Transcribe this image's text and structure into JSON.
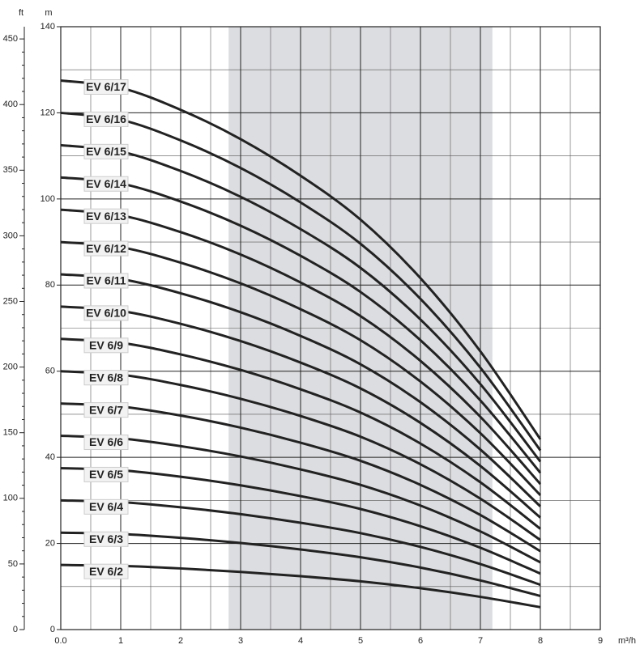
{
  "chart_data": {
    "type": "line",
    "y_unit_label": "m",
    "y2_unit_label": "ft",
    "x_unit_label": "m³/h",
    "xlim": [
      0,
      9
    ],
    "xticks": [
      {
        "value": 0,
        "label": "0.0"
      },
      1,
      2,
      3,
      4,
      5,
      6,
      7,
      8,
      9
    ],
    "ylim": [
      0,
      140
    ],
    "yticks": [
      0,
      20,
      40,
      60,
      80,
      100,
      120,
      140
    ],
    "y2lim": [
      0,
      459.32
    ],
    "y2ticks": [
      0,
      50,
      100,
      150,
      200,
      250,
      300,
      350,
      400,
      450
    ],
    "highlight_range": [
      2.8,
      7.2
    ],
    "highlight_color": "#dcdde0",
    "grid": true,
    "x": [
      0,
      1,
      2,
      3,
      4,
      5,
      6,
      7,
      8
    ],
    "series": [
      {
        "name": "EV 6/17",
        "color": "#222",
        "values": [
          127.5,
          125.8,
          120.7,
          113.9,
          105.4,
          95.2,
          81.6,
          64.6,
          44.2
        ]
      },
      {
        "name": "EV 6/16",
        "color": "#222",
        "values": [
          120,
          118.4,
          113.6,
          107.2,
          99.2,
          89.6,
          76.8,
          60.8,
          41.6
        ]
      },
      {
        "name": "EV 6/15",
        "color": "#222",
        "values": [
          112.5,
          111,
          106.5,
          100.5,
          93,
          84,
          72,
          57,
          39
        ]
      },
      {
        "name": "EV 6/14",
        "color": "#222",
        "values": [
          105,
          103.6,
          99.4,
          93.8,
          86.8,
          78.4,
          67.2,
          53.2,
          36.4
        ]
      },
      {
        "name": "EV 6/13",
        "color": "#222",
        "values": [
          97.5,
          96.2,
          92.3,
          87.1,
          80.6,
          72.8,
          62.4,
          49.4,
          33.8
        ]
      },
      {
        "name": "EV 6/12",
        "color": "#222",
        "values": [
          90,
          88.8,
          85.2,
          80.4,
          74.4,
          67.2,
          57.6,
          45.6,
          31.2
        ]
      },
      {
        "name": "EV 6/11",
        "color": "#222",
        "values": [
          82.5,
          81.4,
          78.1,
          73.7,
          68.2,
          61.6,
          52.8,
          41.8,
          28.6
        ]
      },
      {
        "name": "EV 6/10",
        "color": "#222",
        "values": [
          75,
          74,
          71,
          67,
          62,
          56,
          48,
          38,
          26
        ]
      },
      {
        "name": "EV 6/9",
        "color": "#222",
        "values": [
          67.5,
          66.6,
          63.9,
          60.3,
          55.8,
          50.4,
          43.2,
          34.2,
          23.4
        ]
      },
      {
        "name": "EV 6/8",
        "color": "#222",
        "values": [
          60,
          59.2,
          56.8,
          53.6,
          49.6,
          44.8,
          38.4,
          30.4,
          20.8
        ]
      },
      {
        "name": "EV 6/7",
        "color": "#222",
        "values": [
          52.5,
          51.8,
          49.7,
          46.9,
          43.4,
          39.2,
          33.6,
          26.6,
          18.2
        ]
      },
      {
        "name": "EV 6/6",
        "color": "#222",
        "values": [
          45,
          44.4,
          42.6,
          40.2,
          37.2,
          33.6,
          28.8,
          22.8,
          15.6
        ]
      },
      {
        "name": "EV 6/5",
        "color": "#222",
        "values": [
          37.5,
          37,
          35.5,
          33.5,
          31,
          28,
          24,
          19,
          13
        ]
      },
      {
        "name": "EV 6/4",
        "color": "#222",
        "values": [
          30,
          29.6,
          28.4,
          26.8,
          24.8,
          22.4,
          19.2,
          15.2,
          10.4
        ]
      },
      {
        "name": "EV 6/3",
        "color": "#222",
        "values": [
          22.5,
          22.2,
          21.3,
          20.1,
          18.6,
          16.8,
          14.4,
          11.4,
          7.8
        ]
      },
      {
        "name": "EV 6/2",
        "color": "#222",
        "values": [
          15,
          14.8,
          14.2,
          13.4,
          12.4,
          11.2,
          9.6,
          7.6,
          5.2
        ]
      }
    ]
  }
}
